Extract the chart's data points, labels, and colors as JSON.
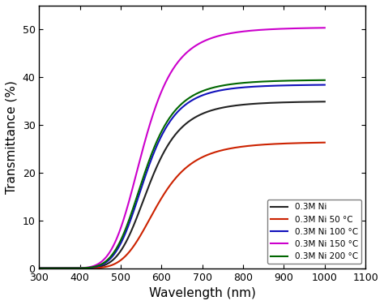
{
  "title": "",
  "xlabel": "Wavelength (nm)",
  "ylabel": "Transmittance (%)",
  "xlim": [
    300,
    1100
  ],
  "ylim": [
    0,
    55
  ],
  "xticks": [
    300,
    400,
    500,
    600,
    700,
    800,
    900,
    1000,
    1100
  ],
  "yticks": [
    0,
    10,
    20,
    30,
    40,
    50
  ],
  "series": [
    {
      "label": "0.3M Ni",
      "color": "#222222",
      "x0": 370,
      "k": 0.012,
      "ymax": 35.0,
      "n": 5.0
    },
    {
      "label": "0.3M Ni 50 °C",
      "color": "#cc2200",
      "x0": 390,
      "k": 0.009,
      "ymax": 26.5,
      "n": 4.5
    },
    {
      "label": "0.3M Ni 100 °C",
      "color": "#1111bb",
      "x0": 360,
      "k": 0.0125,
      "ymax": 38.5,
      "n": 5.2
    },
    {
      "label": "0.3M Ni 150 °C",
      "color": "#cc00cc",
      "x0": 355,
      "k": 0.011,
      "ymax": 50.5,
      "n": 5.0
    },
    {
      "label": "0.3M Ni 200 °C",
      "color": "#006600",
      "x0": 358,
      "k": 0.0118,
      "ymax": 39.5,
      "n": 5.1
    }
  ],
  "legend_loc": "lower right",
  "figsize": [
    4.74,
    3.76
  ],
  "dpi": 100,
  "background_color": "#ffffff",
  "linewidth": 1.5
}
